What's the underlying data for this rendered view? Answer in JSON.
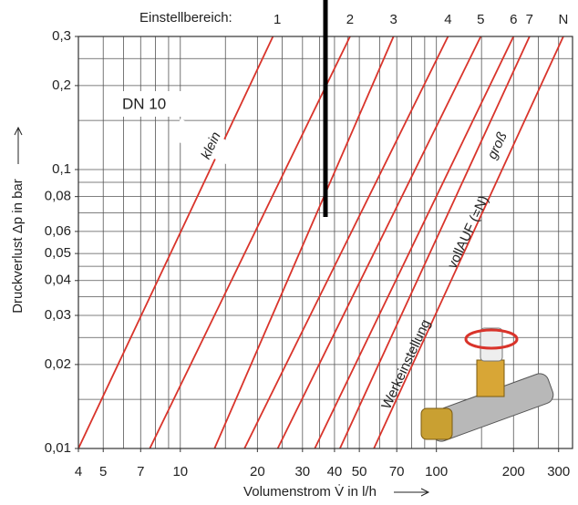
{
  "chart_data": {
    "type": "line",
    "title": "Einstellbereich:",
    "x_label": "Volumenstrom V̇ in l/h",
    "y_label": "Druckverlust Δp in bar",
    "log_x": true,
    "log_y": true,
    "grid": true,
    "xlim": [
      4,
      340
    ],
    "ylim": [
      0.01,
      0.3
    ],
    "xticks": [
      4,
      5,
      7,
      10,
      20,
      30,
      40,
      50,
      70,
      100,
      200,
      300
    ],
    "yticks": [
      {
        "value": 0.01,
        "label": "0,01"
      },
      {
        "value": 0.02,
        "label": "0,02"
      },
      {
        "value": 0.03,
        "label": "0,03"
      },
      {
        "value": 0.04,
        "label": "0,04"
      },
      {
        "value": 0.05,
        "label": "0,05"
      },
      {
        "value": 0.06,
        "label": "0,06"
      },
      {
        "value": 0.08,
        "label": "0,08"
      },
      {
        "value": 0.1,
        "label": "0,1"
      },
      {
        "value": 0.2,
        "label": "0,2"
      },
      {
        "value": 0.3,
        "label": "0,3"
      }
    ],
    "xgrid": [
      4,
      5,
      6,
      7,
      8,
      9,
      10,
      15,
      20,
      25,
      30,
      35,
      40,
      45,
      50,
      60,
      70,
      80,
      90,
      100,
      150,
      200,
      250,
      300
    ],
    "ygrid": [
      0.01,
      0.015,
      0.02,
      0.025,
      0.03,
      0.035,
      0.04,
      0.045,
      0.05,
      0.06,
      0.07,
      0.08,
      0.09,
      0.1,
      0.15,
      0.2,
      0.25,
      0.3
    ],
    "series": [
      {
        "name": "1",
        "color": "#d9342b",
        "x": [
          4,
          23
        ],
        "values": [
          0.01,
          0.3
        ]
      },
      {
        "name": "2",
        "color": "#d9342b",
        "x": [
          7.6,
          46
        ],
        "values": [
          0.01,
          0.3
        ]
      },
      {
        "name": "3",
        "color": "#d9342b",
        "x": [
          13.6,
          68
        ],
        "values": [
          0.01,
          0.3
        ]
      },
      {
        "name": "4",
        "color": "#d9342b",
        "x": [
          17.8,
          111
        ],
        "values": [
          0.01,
          0.3
        ]
      },
      {
        "name": "5",
        "color": "#d9342b",
        "x": [
          24,
          149
        ],
        "values": [
          0.01,
          0.3
        ]
      },
      {
        "name": "6",
        "color": "#d9342b",
        "x": [
          33.5,
          200
        ],
        "values": [
          0.01,
          0.3
        ]
      },
      {
        "name": "7",
        "color": "#d9342b",
        "x": [
          42,
          231
        ],
        "values": [
          0.01,
          0.3
        ]
      },
      {
        "name": "N",
        "color": "#d9342b",
        "x": [
          57,
          313
        ],
        "values": [
          0.01,
          0.3
        ]
      }
    ],
    "annotations": [
      "DN 10",
      "klein",
      "groß",
      "vollAUF (=N)",
      "Werkeinstellung"
    ]
  }
}
